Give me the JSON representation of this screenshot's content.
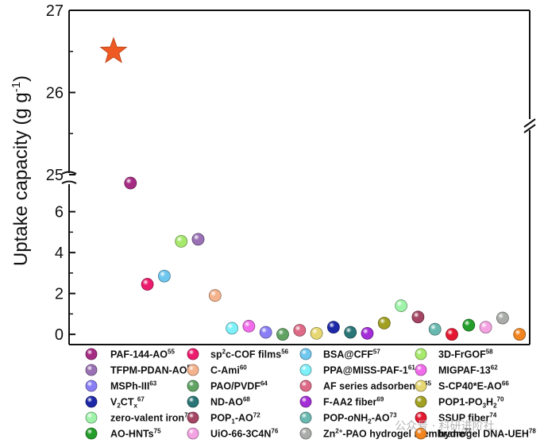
{
  "chart_data": {
    "type": "scatter",
    "title": "",
    "xlabel": "",
    "ylabel": "Uptake capacity (g g",
    "ylabel_sup": "-1",
    "ylabel_end": ")",
    "axis_break": true,
    "upper_ylim": [
      25,
      27
    ],
    "lower_ylim": [
      -0.5,
      7.5
    ],
    "y_ticks_upper": [
      "25",
      "26",
      "27"
    ],
    "y_ticks_lower": [
      "0",
      "2",
      "4",
      "6"
    ],
    "star": {
      "index": 0,
      "value": 26.5,
      "color": "#ef5a24",
      "marker": "star"
    },
    "points": [
      {
        "index": 1,
        "value": 7.4,
        "color": "#a62d84"
      },
      {
        "index": 2,
        "value": 2.45,
        "color": "#ec1b6d"
      },
      {
        "index": 3,
        "value": 2.85,
        "color": "#6ec7ee"
      },
      {
        "index": 4,
        "value": 4.55,
        "color": "#a6e96c"
      },
      {
        "index": 5,
        "value": 4.65,
        "color": "#9a71b5"
      },
      {
        "index": 6,
        "value": 1.9,
        "color": "#f5b38d"
      },
      {
        "index": 7,
        "value": 0.3,
        "color": "#7ef0fa"
      },
      {
        "index": 8,
        "value": 0.4,
        "color": "#f06cea"
      },
      {
        "index": 9,
        "value": 0.1,
        "color": "#8a7ef5"
      },
      {
        "index": 10,
        "value": 0.0,
        "color": "#60a363"
      },
      {
        "index": 11,
        "value": 0.2,
        "color": "#dd6a86"
      },
      {
        "index": 12,
        "value": 0.05,
        "color": "#e6d772"
      },
      {
        "index": 13,
        "value": 0.35,
        "color": "#1c28a8"
      },
      {
        "index": 14,
        "value": 0.1,
        "color": "#2a7576"
      },
      {
        "index": 15,
        "value": 0.05,
        "color": "#a32dd6"
      },
      {
        "index": 16,
        "value": 0.55,
        "color": "#a1a021"
      },
      {
        "index": 17,
        "value": 1.4,
        "color": "#9ff3a8"
      },
      {
        "index": 18,
        "value": 0.85,
        "color": "#a44663"
      },
      {
        "index": 19,
        "value": 0.25,
        "color": "#6ab9b1"
      },
      {
        "index": 20,
        "value": 0.0,
        "color": "#e41830"
      },
      {
        "index": 21,
        "value": 0.45,
        "color": "#249e2a"
      },
      {
        "index": 22,
        "value": 0.35,
        "color": "#f4a2e1"
      },
      {
        "index": 23,
        "value": 0.8,
        "color": "#a9aca8"
      },
      {
        "index": 24,
        "value": 0.0,
        "color": "#f1841f"
      }
    ],
    "legend": [
      {
        "label": "PAF-144-AO",
        "sup": "55",
        "color": "#a62d84"
      },
      {
        "label": "sp",
        "sup": "2",
        "tail": "c-COF films",
        "sup2": "56",
        "color": "#ec1b6d"
      },
      {
        "label": "BSA@CFF",
        "sup": "57",
        "color": "#6ec7ee"
      },
      {
        "label": "3D-FrGOF",
        "sup": "58",
        "color": "#a6e96c"
      },
      {
        "label": "TFPM-PDAN-AO",
        "sup": "59",
        "color": "#9a71b5"
      },
      {
        "label": "C-Ami",
        "sup": "60",
        "color": "#f5b38d"
      },
      {
        "label": "PPA@MISS-PAF-1",
        "sup": "61",
        "color": "#7ef0fa"
      },
      {
        "label": "MIGPAF-13",
        "sup": "62",
        "color": "#f06cea"
      },
      {
        "label": "MSPh-III",
        "sup": "63",
        "color": "#8a7ef5"
      },
      {
        "label": "PAO/PVDF",
        "sup": "64",
        "color": "#60a363"
      },
      {
        "label": "AF series adsorbents",
        "sup": "65",
        "color": "#dd6a86"
      },
      {
        "label": "S-CP40*E-AO",
        "sup": "66",
        "color": "#e6d772"
      },
      {
        "label": "V",
        "sub": "2",
        "tail": "CT",
        "sub2": "x",
        "sup2": "67",
        "color": "#1c28a8"
      },
      {
        "label": "ND-AO",
        "sup": "68",
        "color": "#2a7576"
      },
      {
        "label": "F-AA2 fiber",
        "sup": "69",
        "color": "#a32dd6"
      },
      {
        "label": "POP1-PO",
        "sub": "3",
        "tail": "H",
        "sub2": "2",
        "sup2": "70",
        "color": "#a1a021"
      },
      {
        "label": "zero-valent iron",
        "sup": "71",
        "color": "#9ff3a8"
      },
      {
        "label": "POP",
        "sub": "1",
        "tail": "-AO",
        "sup2": "72",
        "color": "#a44663"
      },
      {
        "label": "POP-",
        "italic": "o",
        "tail": "NH",
        "sub2": "2",
        "tail2": "-AO",
        "sup2": "73",
        "color": "#6ab9b1"
      },
      {
        "label": "SSUP fiber",
        "sup": "74",
        "color": "#e41830"
      },
      {
        "label": "AO-HNTs",
        "sup": "75",
        "color": "#249e2a"
      },
      {
        "label": "UiO-66-3C4N",
        "sup": "76",
        "color": "#f4a2e1"
      },
      {
        "label": "Zn",
        "sup": "2+",
        "tail": "-PAO hydrogel membrane",
        "sup2": "77",
        "color": "#a9aca8"
      },
      {
        "label": "hydrogel DNA-UEH",
        "sup": "78",
        "color": "#f1841f"
      }
    ]
  },
  "watermark": {
    "text": "公众号 · 科研进阶社"
  }
}
